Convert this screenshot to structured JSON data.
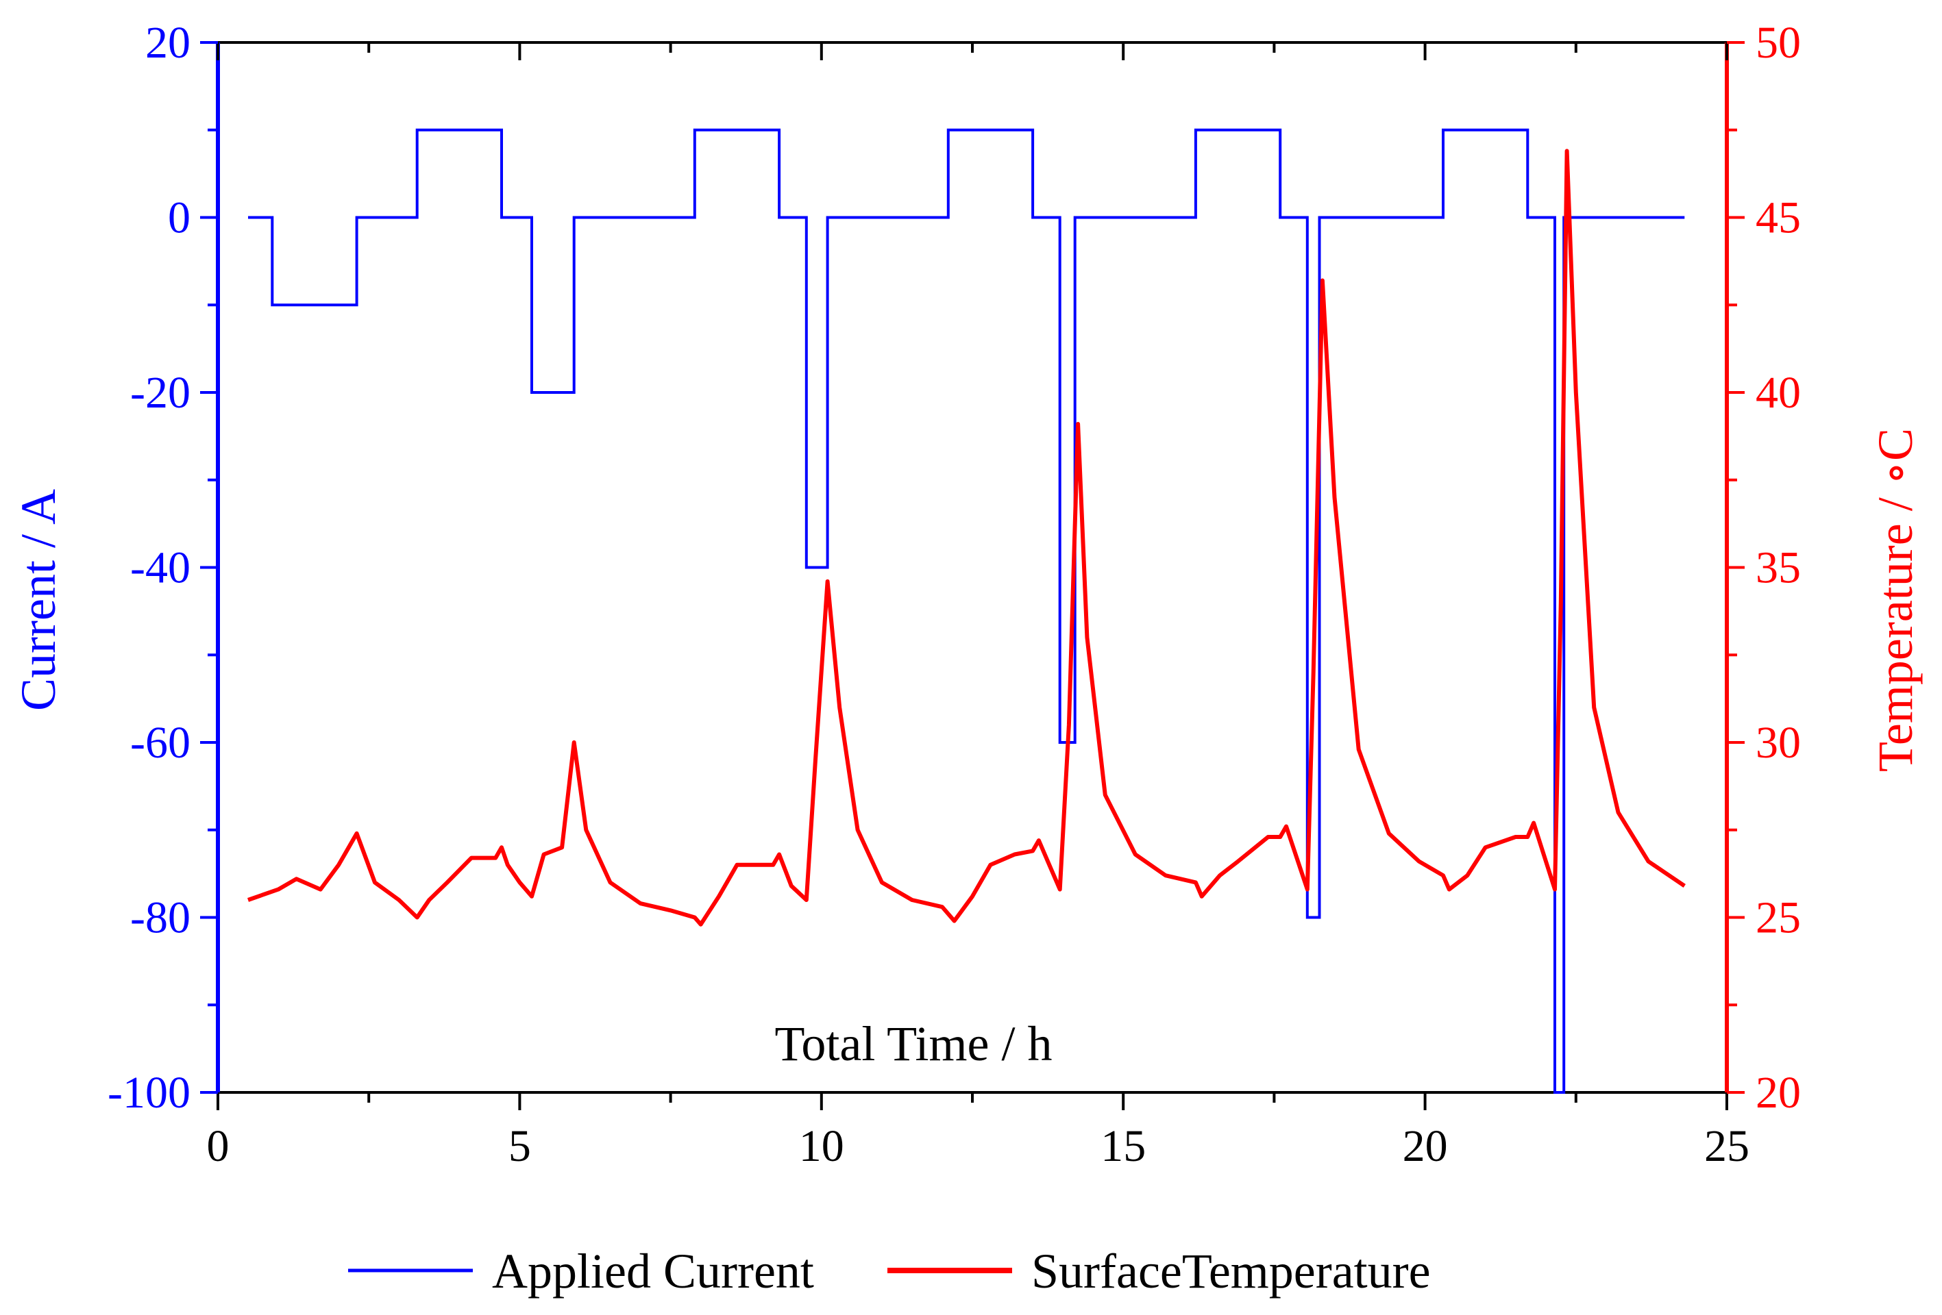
{
  "chart_data": {
    "type": "line",
    "title": "",
    "xlabel": "Total Time / h",
    "ylabel_left": "Current / A",
    "ylabel_right": "Temperature / ∘C",
    "xlim": [
      0,
      25
    ],
    "ylim_left": [
      -100,
      20
    ],
    "ylim_right": [
      20,
      50
    ],
    "x_ticks": [
      "0",
      "5",
      "10",
      "15",
      "20",
      "25"
    ],
    "y_left_ticks": [
      "20",
      "0",
      "-20",
      "-40",
      "-60",
      "-80",
      "-100"
    ],
    "y_right_ticks": [
      "50",
      "45",
      "40",
      "35",
      "30",
      "25",
      "20"
    ],
    "grid": false,
    "legend_position": "bottom",
    "colors": {
      "current": "#0000ff",
      "temperature": "#ff0000",
      "frame": "#000000"
    },
    "series": [
      {
        "name": "Applied Current",
        "axis": "left",
        "x": [
          0.5,
          0.9,
          0.9,
          2.3,
          2.3,
          3.3,
          3.3,
          4.7,
          4.7,
          5.2,
          5.2,
          5.9,
          5.9,
          7.9,
          7.9,
          9.3,
          9.3,
          9.75,
          9.75,
          10.1,
          10.1,
          12.1,
          12.1,
          13.5,
          13.5,
          13.95,
          13.95,
          14.2,
          14.2,
          16.2,
          16.2,
          17.6,
          17.6,
          18.05,
          18.05,
          18.25,
          18.25,
          20.3,
          20.3,
          21.7,
          21.7,
          22.15,
          22.15,
          22.3,
          22.3,
          24.3
        ],
        "values": [
          0,
          0,
          -10,
          -10,
          0,
          0,
          10,
          10,
          0,
          0,
          -20,
          -20,
          0,
          0,
          10,
          10,
          0,
          0,
          -40,
          -40,
          0,
          0,
          10,
          10,
          0,
          0,
          -60,
          -60,
          0,
          0,
          10,
          10,
          0,
          0,
          -80,
          -80,
          0,
          0,
          10,
          10,
          0,
          0,
          -100,
          -100,
          0,
          0
        ]
      },
      {
        "name": "SurfaceTemperature",
        "axis": "right",
        "x": [
          0.5,
          1.0,
          1.3,
          1.7,
          2.0,
          2.3,
          2.6,
          3.0,
          3.3,
          3.5,
          3.8,
          4.2,
          4.6,
          4.7,
          4.8,
          5.0,
          5.2,
          5.4,
          5.7,
          5.9,
          6.1,
          6.5,
          7.0,
          7.5,
          7.9,
          8.0,
          8.3,
          8.6,
          9.0,
          9.2,
          9.3,
          9.5,
          9.75,
          9.9,
          10.1,
          10.3,
          10.6,
          11.0,
          11.5,
          12.0,
          12.2,
          12.5,
          12.8,
          13.2,
          13.5,
          13.6,
          13.95,
          14.1,
          14.25,
          14.4,
          14.7,
          15.2,
          15.7,
          16.2,
          16.3,
          16.6,
          16.9,
          17.4,
          17.6,
          17.7,
          18.05,
          18.15,
          18.3,
          18.5,
          18.9,
          19.4,
          19.9,
          20.3,
          20.4,
          20.7,
          21.0,
          21.5,
          21.7,
          21.8,
          22.15,
          22.25,
          22.35,
          22.5,
          22.8,
          23.2,
          23.7,
          24.3
        ],
        "values": [
          25.5,
          25.8,
          26.1,
          25.8,
          26.5,
          27.4,
          26.0,
          25.5,
          25.0,
          25.5,
          26.0,
          26.7,
          26.7,
          27.0,
          26.5,
          26.0,
          25.6,
          26.8,
          27.0,
          30.0,
          27.5,
          26.0,
          25.4,
          25.2,
          25.0,
          24.8,
          25.6,
          26.5,
          26.5,
          26.5,
          26.8,
          25.9,
          25.5,
          29.5,
          34.6,
          31.0,
          27.5,
          26.0,
          25.5,
          25.3,
          24.9,
          25.6,
          26.5,
          26.8,
          26.9,
          27.2,
          25.8,
          30.5,
          39.1,
          33.0,
          28.5,
          26.8,
          26.2,
          26.0,
          25.6,
          26.2,
          26.6,
          27.3,
          27.3,
          27.6,
          25.8,
          32.0,
          43.2,
          37.0,
          29.8,
          27.4,
          26.6,
          26.2,
          25.8,
          26.2,
          27.0,
          27.3,
          27.3,
          27.7,
          25.8,
          34.0,
          46.9,
          40.0,
          31.0,
          28.0,
          26.6,
          25.9
        ]
      }
    ]
  }
}
